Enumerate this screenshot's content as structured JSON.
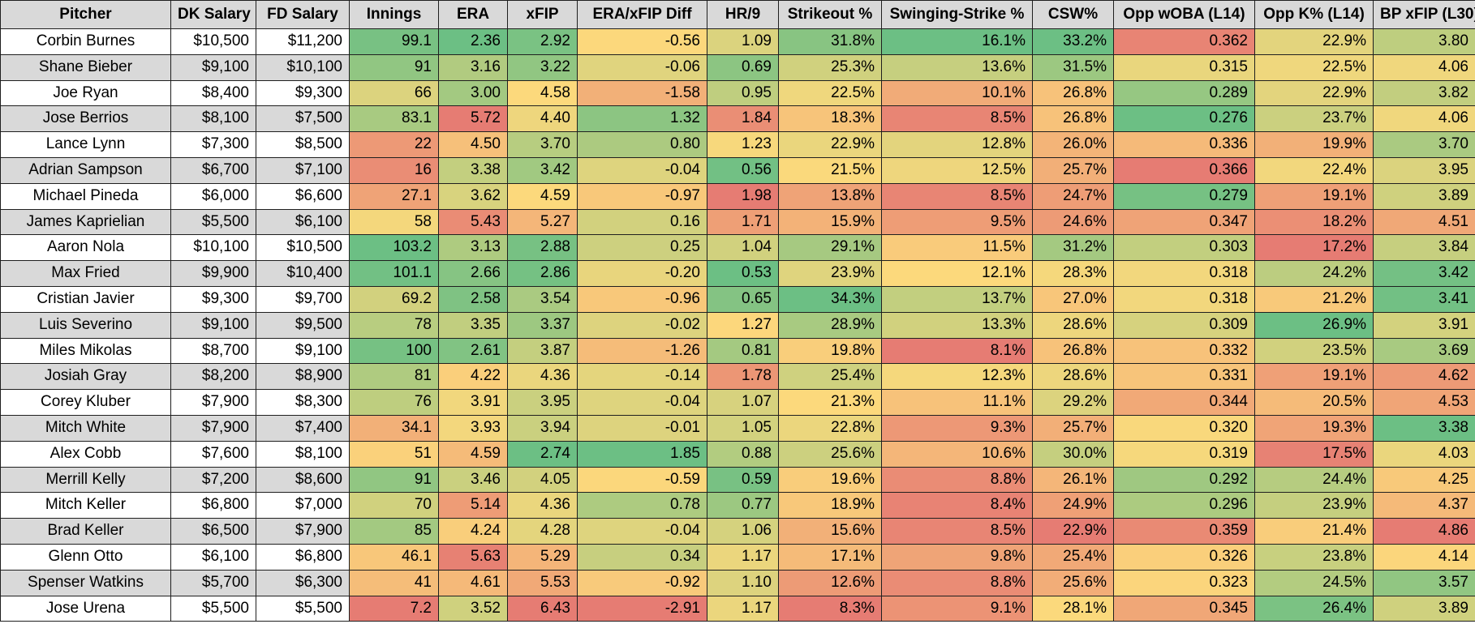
{
  "columns": [
    "Pitcher",
    "DK Salary",
    "FD Salary",
    "Innings",
    "ERA",
    "xFIP",
    "ERA/xFIP Diff",
    "HR/9",
    "Strikeout %",
    "Swinging-Strike %",
    "CSW%",
    "Opp wOBA (L14)",
    "Opp K% (L14)",
    "BP xFIP (L30)"
  ],
  "rows": [
    [
      "Corbin Burnes",
      "$10,500",
      "$11,200",
      "99.1",
      "2.36",
      "2.92",
      "-0.56",
      "1.09",
      "31.8%",
      "16.1%",
      "33.2%",
      "0.362",
      "22.9%",
      "3.80"
    ],
    [
      "Shane Bieber",
      "$9,100",
      "$10,100",
      "91",
      "3.16",
      "3.22",
      "-0.06",
      "0.69",
      "25.3%",
      "13.6%",
      "31.5%",
      "0.315",
      "22.5%",
      "4.06"
    ],
    [
      "Joe Ryan",
      "$8,400",
      "$9,300",
      "66",
      "3.00",
      "4.58",
      "-1.58",
      "0.95",
      "22.5%",
      "10.1%",
      "26.8%",
      "0.289",
      "22.9%",
      "3.82"
    ],
    [
      "Jose Berrios",
      "$8,100",
      "$7,500",
      "83.1",
      "5.72",
      "4.40",
      "1.32",
      "1.84",
      "18.3%",
      "8.5%",
      "26.8%",
      "0.276",
      "23.7%",
      "4.06"
    ],
    [
      "Lance Lynn",
      "$7,300",
      "$8,500",
      "22",
      "4.50",
      "3.70",
      "0.80",
      "1.23",
      "22.9%",
      "12.8%",
      "26.0%",
      "0.336",
      "19.9%",
      "3.70"
    ],
    [
      "Adrian Sampson",
      "$6,700",
      "$7,100",
      "16",
      "3.38",
      "3.42",
      "-0.04",
      "0.56",
      "21.5%",
      "12.5%",
      "25.7%",
      "0.366",
      "22.4%",
      "3.95"
    ],
    [
      "Michael Pineda",
      "$6,000",
      "$6,600",
      "27.1",
      "3.62",
      "4.59",
      "-0.97",
      "1.98",
      "13.8%",
      "8.5%",
      "24.7%",
      "0.279",
      "19.1%",
      "3.89"
    ],
    [
      "James Kaprielian",
      "$5,500",
      "$6,100",
      "58",
      "5.43",
      "5.27",
      "0.16",
      "1.71",
      "15.9%",
      "9.5%",
      "24.6%",
      "0.347",
      "18.2%",
      "4.51"
    ],
    [
      "Aaron Nola",
      "$10,100",
      "$10,500",
      "103.2",
      "3.13",
      "2.88",
      "0.25",
      "1.04",
      "29.1%",
      "11.5%",
      "31.2%",
      "0.303",
      "17.2%",
      "3.84"
    ],
    [
      "Max Fried",
      "$9,900",
      "$10,400",
      "101.1",
      "2.66",
      "2.86",
      "-0.20",
      "0.53",
      "23.9%",
      "12.1%",
      "28.3%",
      "0.318",
      "24.2%",
      "3.42"
    ],
    [
      "Cristian Javier",
      "$9,300",
      "$9,700",
      "69.2",
      "2.58",
      "3.54",
      "-0.96",
      "0.65",
      "34.3%",
      "13.7%",
      "27.0%",
      "0.318",
      "21.2%",
      "3.41"
    ],
    [
      "Luis Severino",
      "$9,100",
      "$9,500",
      "78",
      "3.35",
      "3.37",
      "-0.02",
      "1.27",
      "28.9%",
      "13.3%",
      "28.6%",
      "0.309",
      "26.9%",
      "3.91"
    ],
    [
      "Miles Mikolas",
      "$8,700",
      "$9,100",
      "100",
      "2.61",
      "3.87",
      "-1.26",
      "0.81",
      "19.8%",
      "8.1%",
      "26.8%",
      "0.332",
      "23.5%",
      "3.69"
    ],
    [
      "Josiah Gray",
      "$8,200",
      "$8,900",
      "81",
      "4.22",
      "4.36",
      "-0.14",
      "1.78",
      "25.4%",
      "12.3%",
      "28.6%",
      "0.331",
      "19.1%",
      "4.62"
    ],
    [
      "Corey Kluber",
      "$7,900",
      "$8,300",
      "76",
      "3.91",
      "3.95",
      "-0.04",
      "1.07",
      "21.3%",
      "11.1%",
      "29.2%",
      "0.344",
      "20.5%",
      "4.53"
    ],
    [
      "Mitch White",
      "$7,900",
      "$7,400",
      "34.1",
      "3.93",
      "3.94",
      "-0.01",
      "1.05",
      "22.8%",
      "9.3%",
      "25.7%",
      "0.320",
      "19.3%",
      "3.38"
    ],
    [
      "Alex Cobb",
      "$7,600",
      "$8,100",
      "51",
      "4.59",
      "2.74",
      "1.85",
      "0.88",
      "25.6%",
      "10.6%",
      "30.0%",
      "0.319",
      "17.5%",
      "4.03"
    ],
    [
      "Merrill Kelly",
      "$7,200",
      "$8,600",
      "91",
      "3.46",
      "4.05",
      "-0.59",
      "0.59",
      "19.6%",
      "8.8%",
      "26.1%",
      "0.292",
      "24.4%",
      "4.25"
    ],
    [
      "Mitch Keller",
      "$6,800",
      "$7,000",
      "70",
      "5.14",
      "4.36",
      "0.78",
      "0.77",
      "18.9%",
      "8.4%",
      "24.9%",
      "0.296",
      "23.9%",
      "4.37"
    ],
    [
      "Brad Keller",
      "$6,500",
      "$7,900",
      "85",
      "4.24",
      "4.28",
      "-0.04",
      "1.06",
      "15.6%",
      "8.5%",
      "22.9%",
      "0.359",
      "21.4%",
      "4.86"
    ],
    [
      "Glenn Otto",
      "$6,100",
      "$6,800",
      "46.1",
      "5.63",
      "5.29",
      "0.34",
      "1.17",
      "17.1%",
      "9.8%",
      "25.4%",
      "0.326",
      "23.8%",
      "4.14"
    ],
    [
      "Spenser Watkins",
      "$5,700",
      "$6,300",
      "41",
      "4.61",
      "5.53",
      "-0.92",
      "1.10",
      "12.6%",
      "8.8%",
      "25.6%",
      "0.323",
      "24.5%",
      "3.57"
    ],
    [
      "Jose Urena",
      "$5,500",
      "$5,500",
      "7.2",
      "3.52",
      "6.43",
      "-2.91",
      "1.17",
      "8.3%",
      "9.1%",
      "28.1%",
      "0.345",
      "26.4%",
      "3.89"
    ]
  ],
  "colors": {
    "header_bg": "#d9d9d9",
    "good": "#6cbf84",
    "mid": "#fcd97c",
    "bad": "#e67c73",
    "row_alt": "#d9d9d9"
  }
}
